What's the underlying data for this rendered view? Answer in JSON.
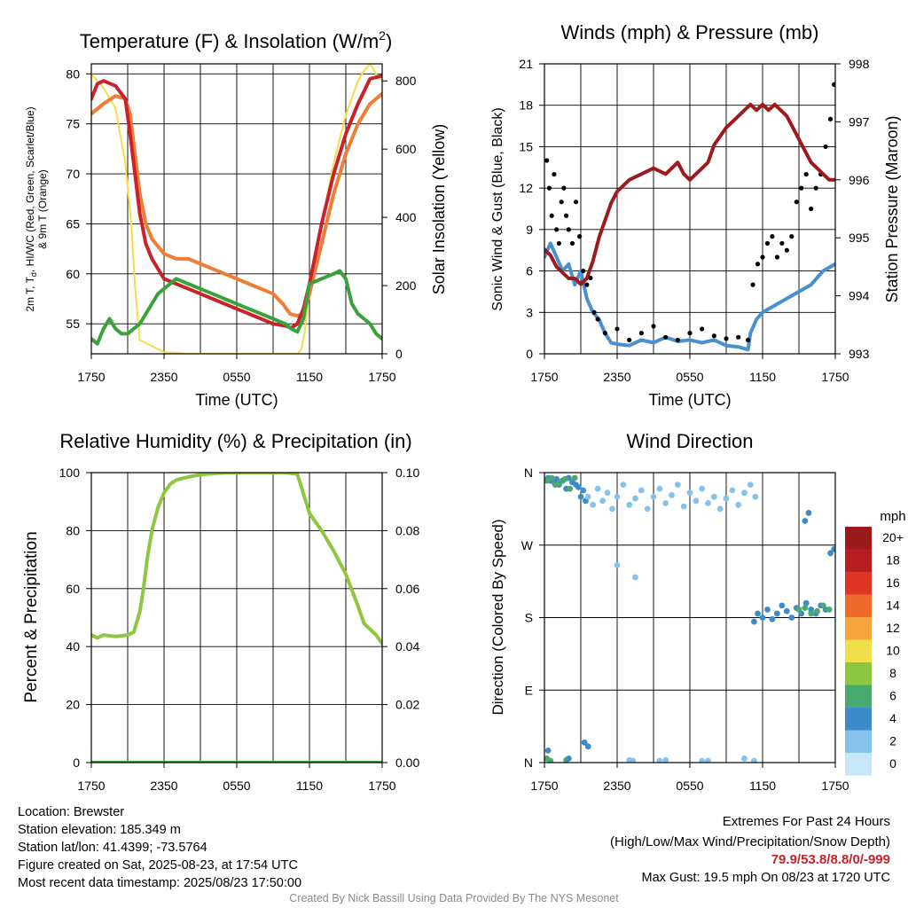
{
  "chart_data": [
    {
      "type": "line",
      "title": "Temperature (F) & Insolation (W/m",
      "title_sup": "2",
      "title_end": ")",
      "xlabel": "Time (UTC)",
      "ylabel_lines": [
        "2m T, T",
        "d",
        ", HI/WC (Red, Green, Scarlet/Blue)",
        "& 9m T (Orange)"
      ],
      "y2label": "Solar Insolation (Yellow)",
      "x_ticks": [
        "1750",
        "2350",
        "0550",
        "1150",
        "1750"
      ],
      "ylim": [
        52,
        81
      ],
      "y_ticks": [
        55,
        60,
        65,
        70,
        75,
        80
      ],
      "y2lim": [
        0,
        850
      ],
      "y2_ticks": [
        0,
        200,
        400,
        600,
        800
      ],
      "grid": true,
      "series": [
        {
          "color": "#f7dc48",
          "axis": "right",
          "x": [
            0,
            0.5,
            1,
            2,
            2.8,
            3.3,
            3.6,
            4,
            6,
            8,
            10,
            15,
            17,
            17.3,
            17.6,
            18,
            19,
            20,
            21,
            21.5,
            21.8,
            22,
            22.5,
            23,
            23.5,
            24
          ],
          "y": [
            820,
            800,
            780,
            720,
            560,
            380,
            200,
            40,
            5,
            0,
            0,
            0,
            0,
            10,
            60,
            190,
            380,
            560,
            700,
            750,
            780,
            800,
            830,
            850,
            820,
            800
          ]
        },
        {
          "color": "#ef7d34",
          "axis": "left",
          "x": [
            0,
            1,
            2,
            2.8,
            3.2,
            3.6,
            4,
            4.5,
            5,
            6,
            7,
            8,
            9,
            10,
            11,
            12,
            13,
            14,
            15,
            15.8,
            16.4,
            17,
            17.5,
            18,
            19,
            20,
            21,
            22,
            23,
            24
          ],
          "y": [
            76,
            77,
            77.8,
            77.5,
            76,
            72,
            68,
            65,
            63.5,
            62,
            61.5,
            61.5,
            61,
            60.5,
            60,
            59.5,
            59,
            58.5,
            58,
            57,
            56,
            55.8,
            56,
            58,
            63,
            68,
            72,
            75,
            77,
            78
          ]
        },
        {
          "color": "#c8232c",
          "axis": "left",
          "x": [
            0,
            0.5,
            1,
            2,
            2.8,
            3.2,
            3.6,
            4,
            4.5,
            5,
            5.5,
            6,
            7,
            8,
            9,
            10,
            11,
            12,
            13,
            14,
            15,
            16,
            16.5,
            17,
            17.5,
            18,
            19,
            20,
            21,
            22,
            23,
            24
          ],
          "y": [
            77.5,
            79,
            79.3,
            78.8,
            77.5,
            74,
            70,
            66,
            63,
            61.5,
            60.5,
            59.5,
            59,
            58.5,
            58,
            57.5,
            57,
            56.5,
            56,
            55.5,
            55,
            54.8,
            54.6,
            55,
            56.5,
            59,
            65,
            70,
            74,
            77,
            79.5,
            79.8
          ]
        },
        {
          "color": "#3ba13a",
          "axis": "left",
          "x": [
            0,
            0.5,
            1,
            1.5,
            2,
            2.5,
            3,
            3.5,
            4,
            4.5,
            5,
            5.5,
            6,
            6.5,
            7,
            8,
            9,
            10,
            11,
            12,
            13,
            14,
            15,
            16,
            16.5,
            17,
            17.5,
            18,
            19,
            20,
            20.5,
            21,
            21.5,
            22,
            22.5,
            23,
            23.5,
            24
          ],
          "y": [
            53.5,
            53,
            54.5,
            55.5,
            54.5,
            54,
            54,
            54.5,
            55,
            56,
            57,
            58,
            58.5,
            59,
            59.5,
            59,
            58.5,
            58,
            57.5,
            57,
            56.5,
            56,
            55.5,
            55,
            54.5,
            54.2,
            55.5,
            59,
            59.5,
            60,
            60.3,
            59.5,
            57,
            56,
            55.5,
            55,
            54,
            53.5
          ]
        }
      ]
    },
    {
      "type": "line",
      "title": "Winds (mph) & Pressure (mb)",
      "xlabel": "Time (UTC)",
      "ylabel": "Sonic Wind & Gust (Blue, Black)",
      "y2label": "Station Pressure (Maroon)",
      "x_ticks": [
        "1750",
        "2350",
        "0550",
        "1150",
        "1750"
      ],
      "ylim": [
        0,
        21
      ],
      "y_ticks": [
        0,
        3,
        6,
        9,
        12,
        15,
        18,
        21
      ],
      "y2lim": [
        993,
        998
      ],
      "y2_ticks": [
        993,
        994,
        995,
        996,
        997,
        998
      ],
      "grid": true,
      "series": [
        {
          "color": "#4a8fd1",
          "axis": "left",
          "x": [
            0,
            0.5,
            1,
            1.5,
            2,
            2.5,
            3,
            3.5,
            4,
            4.5,
            5,
            5.5,
            6,
            7,
            8,
            9,
            10,
            11,
            12,
            13,
            14,
            15,
            16,
            16.8,
            17,
            17.5,
            18,
            19,
            20,
            21,
            22,
            23,
            24
          ],
          "y": [
            7,
            8,
            7,
            6,
            6.5,
            5,
            6,
            4,
            3,
            2.5,
            1.5,
            0.8,
            0.7,
            0.6,
            1,
            0.8,
            1.2,
            0.9,
            1,
            0.8,
            1,
            0.6,
            0.5,
            0.3,
            1.5,
            2.5,
            3,
            3.5,
            4,
            4.5,
            5,
            6,
            6.5
          ]
        },
        {
          "color": "#000000",
          "axis": "left",
          "style": "dots",
          "x": [
            0.2,
            0.4,
            0.6,
            0.8,
            1,
            1.2,
            1.4,
            1.6,
            1.8,
            2,
            2.3,
            2.6,
            2.9,
            3.2,
            3.5,
            3.8,
            4.1,
            4.4,
            5,
            6,
            7,
            8,
            9,
            10,
            11,
            12,
            13,
            14,
            15,
            16,
            16.8,
            17.2,
            17.6,
            18,
            18.4,
            18.8,
            19.2,
            19.6,
            20,
            20.4,
            20.8,
            21.2,
            21.6,
            22,
            22.4,
            22.8,
            23.2,
            23.6,
            23.9
          ],
          "y": [
            14,
            12,
            10,
            13,
            9,
            8,
            11,
            12,
            10,
            9,
            8,
            11,
            8.5,
            6,
            5,
            5.5,
            3,
            2.5,
            1.5,
            1.8,
            1,
            1.5,
            2,
            1.2,
            1,
            1.5,
            1.8,
            1.3,
            1.1,
            1.2,
            1,
            5,
            6.5,
            7,
            8,
            8.5,
            7,
            8,
            7.5,
            8.5,
            11,
            12,
            13,
            10.5,
            12,
            13,
            15,
            17,
            19.5
          ]
        },
        {
          "color": "#9c1a1c",
          "axis": "right",
          "x": [
            0,
            0.5,
            1,
            1.5,
            2,
            2.5,
            3,
            3.5,
            4,
            4.5,
            5,
            5.5,
            6,
            7,
            8,
            9,
            10,
            11,
            11.5,
            12,
            12.5,
            13,
            13.5,
            14,
            15,
            16,
            17,
            17.5,
            18,
            18.5,
            19,
            19.5,
            20,
            20.5,
            21,
            21.5,
            22,
            22.5,
            23,
            23.5,
            24
          ],
          "y": [
            994.8,
            994.7,
            994.5,
            994.4,
            994.3,
            994.3,
            994.2,
            994.3,
            994.6,
            995,
            995.3,
            995.6,
            995.8,
            996,
            996.1,
            996.2,
            996.1,
            996.3,
            996.1,
            996,
            996.1,
            996.2,
            996.3,
            996.6,
            996.9,
            997.1,
            997.3,
            997.2,
            997.3,
            997.2,
            997.3,
            997.2,
            997.1,
            996.9,
            996.7,
            996.5,
            996.3,
            996.2,
            996.1,
            996,
            996
          ]
        }
      ]
    },
    {
      "type": "line",
      "title": "Relative Humidity (%) & Precipitation (in)",
      "xlabel": "",
      "ylabel": "Percent & Precipitation",
      "x_ticks": [
        "1750",
        "2350",
        "0550",
        "1150",
        "1750"
      ],
      "ylim": [
        0,
        100
      ],
      "y_ticks": [
        0,
        20,
        40,
        60,
        80,
        100
      ],
      "y2lim": [
        0,
        0.1
      ],
      "y2_ticks": [
        "0.00",
        "0.02",
        "0.04",
        "0.06",
        "0.08",
        "0.10"
      ],
      "grid": true,
      "series": [
        {
          "color": "#8dc63f",
          "axis": "left",
          "x": [
            0,
            0.5,
            1,
            2,
            3,
            3.5,
            4,
            4.3,
            4.6,
            5,
            5.5,
            6,
            6.5,
            7,
            8,
            9,
            10,
            11,
            12,
            13,
            14,
            14.5,
            15,
            15.3,
            15.6,
            16,
            17,
            18,
            19,
            20,
            21,
            22,
            22.5,
            23,
            23.5,
            24
          ],
          "y": [
            44,
            43,
            44,
            43.5,
            44,
            45,
            52,
            60,
            70,
            80,
            88,
            93,
            96,
            97.5,
            98.5,
            99.3,
            99.7,
            99.9,
            100,
            100,
            100,
            100,
            100,
            100,
            100,
            100,
            99.5,
            86,
            80,
            73,
            65,
            54,
            48,
            46,
            44,
            41
          ]
        },
        {
          "color": "#3ba13a",
          "axis": "left",
          "x": [
            0,
            24
          ],
          "y": [
            0,
            0
          ]
        }
      ]
    },
    {
      "type": "scatter",
      "title": "Wind Direction",
      "ylabel": "Direction (Colored By Speed)",
      "x_ticks": [
        "1750",
        "2350",
        "0550",
        "1150",
        "1750"
      ],
      "y_ticks": [
        "N",
        "E",
        "S",
        "W",
        "N"
      ],
      "ylim": [
        0,
        360
      ],
      "legend_title": "mph",
      "legend_labels": [
        "0",
        "2",
        "4",
        "6",
        "8",
        "10",
        "12",
        "14",
        "16",
        "18",
        "20+"
      ],
      "legend_colors": [
        "#c8e6f8",
        "#86c3ea",
        "#3f8bc9",
        "#4aa96c",
        "#8dc63f",
        "#f0df4a",
        "#f5a43e",
        "#ee6a2c",
        "#de3527",
        "#b81d22",
        "#9c1a1c"
      ],
      "grid": true,
      "series": [
        {
          "color": "#3f8bc9",
          "x": [
            0.3,
            0.5,
            0.8,
            1,
            1.2,
            1.5,
            1.8,
            2,
            2.3,
            2.6,
            2.8,
            3,
            3.2,
            3.4
          ],
          "y": [
            355,
            350,
            348,
            352,
            345,
            350,
            340,
            355,
            348,
            345,
            342,
            330,
            338,
            325
          ]
        },
        {
          "color": "#4aa96c",
          "x": [
            0.2,
            0.6,
            0.9,
            1.3,
            1.7,
            2.1,
            2.5
          ],
          "y": [
            350,
            355,
            345,
            348,
            352,
            340,
            358
          ]
        },
        {
          "color": "#86c3ea",
          "x": [
            3.6,
            4,
            4.4,
            4.8,
            5.2,
            5.6,
            6,
            6.5,
            7,
            7.5,
            8,
            8.5,
            9,
            9.5,
            10,
            10.5,
            11,
            11.5,
            12,
            12.5,
            13,
            13.5,
            14,
            14.5,
            15,
            15.5,
            16,
            16.5,
            17,
            17.4
          ],
          "y": [
            330,
            320,
            340,
            325,
            335,
            315,
            330,
            345,
            320,
            328,
            338,
            315,
            330,
            340,
            322,
            332,
            345,
            318,
            335,
            325,
            340,
            322,
            330,
            315,
            328,
            338,
            320,
            335,
            345,
            330
          ]
        },
        {
          "color": "#3f8bc9",
          "x": [
            17.3,
            17.6,
            18,
            18.4,
            18.8,
            19.2,
            19.6,
            20,
            20.4,
            20.8,
            21.2,
            21.6,
            22,
            22.4,
            22.8,
            23.2,
            23.6,
            23.9
          ],
          "y": [
            175,
            185,
            180,
            190,
            178,
            185,
            195,
            188,
            180,
            192,
            185,
            198,
            190,
            185,
            195,
            190,
            260,
            265
          ]
        },
        {
          "color": "#4aa96c",
          "x": [
            21,
            21.5,
            22,
            22.5,
            23,
            23.5,
            0.2,
            0.5,
            1.8
          ],
          "y": [
            190,
            192,
            185,
            188,
            195,
            190,
            5,
            2,
            3
          ]
        },
        {
          "color": "#3f8bc9",
          "x": [
            21.5,
            21.8,
            0.3,
            2,
            3.3,
            3.6
          ],
          "y": [
            300,
            310,
            15,
            5,
            25,
            20
          ]
        },
        {
          "color": "#86c3ea",
          "x": [
            7,
            7.3,
            9.5,
            10,
            13,
            13.5,
            16.5,
            17.3,
            6,
            7.5
          ],
          "y": [
            3,
            2,
            1,
            3,
            2,
            1,
            5,
            2,
            245,
            230
          ]
        }
      ]
    }
  ],
  "info": {
    "location": "Location: Brewster",
    "elevation": "Station elevation: 185.349 m",
    "latlon": "Station lat/lon: 41.4399; -73.5764",
    "created": "Figure created on Sat, 2025-08-23, at 17:54 UTC",
    "recent": "Most recent data timestamp: 2025/08/23 17:50:00"
  },
  "extremes": {
    "title": "Extremes For Past 24 Hours",
    "subtitle": "(High/Low/Max Wind/Precipitation/Snow Depth)",
    "values": "79.9/53.8/8.8/0/-999",
    "gust": "Max Gust: 19.5 mph On 08/23 at 1720 UTC"
  },
  "credit": "Created By Nick Bassill Using Data Provided By The NYS Mesonet",
  "colors": {
    "axis": "#000000",
    "grid": "#000000",
    "credit": "#8a8a8a",
    "extremes": "#c8232c"
  }
}
